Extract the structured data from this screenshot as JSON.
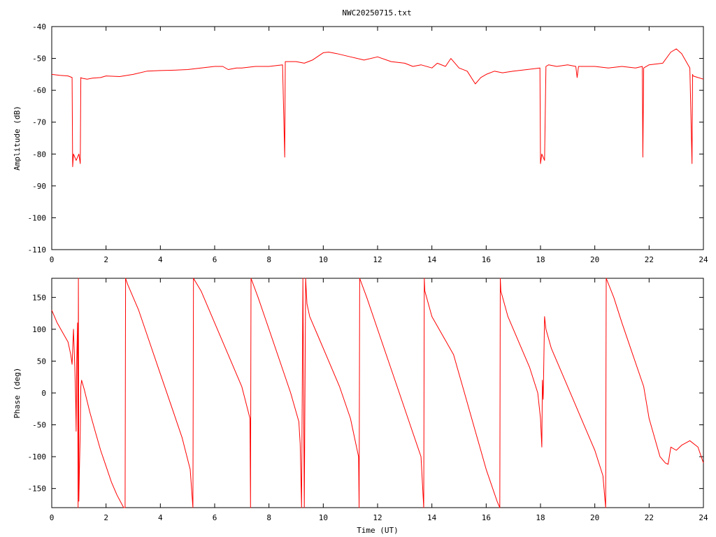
{
  "page": {
    "title": "NWC20250715.txt"
  },
  "colors": {
    "series": "#ff0000",
    "axis": "#000000",
    "background": "#ffffff"
  },
  "chart_data": [
    {
      "id": "amplitude",
      "type": "line",
      "title": "NWC20250715.txt",
      "xlabel": "",
      "ylabel": "Amplitude (dB)",
      "xlim": [
        0,
        24
      ],
      "ylim": [
        -110,
        -40
      ],
      "xticks": [
        "0",
        "2",
        "4",
        "6",
        "8",
        "10",
        "12",
        "14",
        "16",
        "18",
        "20",
        "22",
        "24"
      ],
      "yticks": [
        "-40",
        "-50",
        "-60",
        "-70",
        "-80",
        "-90",
        "-100",
        "-110"
      ],
      "grid": false,
      "legend": "none",
      "series": [
        {
          "x": [
            0,
            0.3,
            0.6,
            0.75,
            0.77,
            0.8,
            0.9,
            1.0,
            1.05,
            1.07,
            1.1,
            1.3,
            1.5,
            1.8,
            2.0,
            2.5,
            3.0,
            3.5,
            4.0,
            4.5,
            5.0,
            5.5,
            6.0,
            6.3,
            6.5,
            6.8,
            7.0,
            7.5,
            8.0,
            8.5,
            8.58,
            8.6,
            8.62,
            8.8,
            9.0,
            9.3,
            9.6,
            10.0,
            10.2,
            10.5,
            11.0,
            11.5,
            12.0,
            12.5,
            13.0,
            13.3,
            13.6,
            14.0,
            14.2,
            14.5,
            14.7,
            15.0,
            15.3,
            15.6,
            15.8,
            16.0,
            16.3,
            16.6,
            17.0,
            17.5,
            17.98,
            18.0,
            18.05,
            18.15,
            18.2,
            18.3,
            18.6,
            19.0,
            19.3,
            19.35,
            19.4,
            19.8,
            20.0,
            20.5,
            21.0,
            21.5,
            21.75,
            21.77,
            21.8,
            22.0,
            22.5,
            22.8,
            23.0,
            23.2,
            23.5,
            23.58,
            23.6,
            23.62,
            23.8,
            24.0
          ],
          "y": [
            -55,
            -55.3,
            -55.5,
            -56,
            -84,
            -80,
            -82,
            -80,
            -83,
            -56,
            -56.2,
            -56.5,
            -56.2,
            -56,
            -55.5,
            -55.7,
            -55,
            -54,
            -53.8,
            -53.7,
            -53.5,
            -53,
            -52.5,
            -52.5,
            -53.5,
            -53,
            -53,
            -52.5,
            -52.5,
            -52,
            -81,
            -51,
            -51,
            -51,
            -51,
            -51.5,
            -50.5,
            -48.2,
            -48,
            -48.5,
            -49.5,
            -50.5,
            -49.5,
            -51,
            -51.5,
            -52.5,
            -52,
            -53,
            -51.5,
            -52.5,
            -50,
            -53,
            -54,
            -58,
            -56,
            -55,
            -54,
            -54.5,
            -54,
            -53.5,
            -53,
            -83,
            -80,
            -82,
            -52.5,
            -52,
            -52.5,
            -52,
            -52.5,
            -56,
            -52.5,
            -52.5,
            -52.5,
            -53,
            -52.5,
            -53,
            -52.5,
            -81,
            -53,
            -52,
            -51.5,
            -48,
            -47,
            -48.5,
            -53,
            -83,
            -55,
            -55.5,
            -56,
            -56.5
          ]
        }
      ]
    },
    {
      "id": "phase",
      "type": "line",
      "title": "",
      "xlabel": "Time (UT)",
      "ylabel": "Phase (deg)",
      "xlim": [
        0,
        24
      ],
      "ylim": [
        -180,
        180
      ],
      "xticks": [
        "0",
        "2",
        "4",
        "6",
        "8",
        "10",
        "12",
        "14",
        "16",
        "18",
        "20",
        "22",
        "24"
      ],
      "yticks": [
        "150",
        "100",
        "50",
        "0",
        "-50",
        "-100",
        "-150"
      ],
      "ytick_values": [
        150,
        100,
        50,
        0,
        -50,
        -100,
        -150
      ],
      "grid": false,
      "legend": "none",
      "series": [
        {
          "x": [
            0,
            0.2,
            0.4,
            0.6,
            0.7,
            0.75,
            0.8,
            0.85,
            0.88,
            0.9,
            0.92,
            0.95,
            0.97,
            0.98,
            1.0,
            1.02,
            1.05,
            1.07,
            1.1,
            1.2,
            1.4,
            1.6,
            1.8,
            2.0,
            2.2,
            2.4,
            2.65,
            2.7,
            2.72,
            2.8,
            3.2,
            3.6,
            4.0,
            4.4,
            4.8,
            5.1,
            5.2,
            5.22,
            5.5,
            6.0,
            6.5,
            7.0,
            7.3,
            7.32,
            7.34,
            7.6,
            8.0,
            8.4,
            8.8,
            9.1,
            9.15,
            9.2,
            9.25,
            9.3,
            9.35,
            9.4,
            9.5,
            9.8,
            10.2,
            10.6,
            11.0,
            11.3,
            11.32,
            11.34,
            11.6,
            12.0,
            12.4,
            12.8,
            13.2,
            13.6,
            13.7,
            13.72,
            13.74,
            14.0,
            14.4,
            14.8,
            15.0,
            15.2,
            15.4,
            15.6,
            15.8,
            16.0,
            16.4,
            16.5,
            16.52,
            16.54,
            16.8,
            17.2,
            17.6,
            17.9,
            18.0,
            18.05,
            18.07,
            18.1,
            18.15,
            18.2,
            18.4,
            18.8,
            19.2,
            19.6,
            20.0,
            20.3,
            20.38,
            20.4,
            20.42,
            20.7,
            21.0,
            21.4,
            21.8,
            22.0,
            22.2,
            22.4,
            22.6,
            22.7,
            22.8,
            23.0,
            23.2,
            23.5,
            23.8,
            24.0
          ],
          "y": [
            130,
            110,
            95,
            80,
            60,
            45,
            100,
            40,
            -10,
            -60,
            50,
            110,
            -180,
            180,
            -170,
            -120,
            -60,
            10,
            20,
            5,
            -30,
            -60,
            -90,
            -115,
            -140,
            -160,
            -180,
            -180,
            180,
            170,
            130,
            80,
            30,
            -20,
            -70,
            -120,
            -180,
            180,
            160,
            110,
            60,
            10,
            -40,
            -180,
            180,
            150,
            100,
            50,
            0,
            -45,
            -80,
            -180,
            180,
            -180,
            180,
            140,
            120,
            90,
            50,
            10,
            -40,
            -100,
            -180,
            180,
            150,
            100,
            50,
            0,
            -50,
            -100,
            -180,
            180,
            160,
            120,
            90,
            60,
            30,
            0,
            -30,
            -60,
            -90,
            -120,
            -170,
            -180,
            180,
            160,
            120,
            80,
            40,
            0,
            -40,
            -85,
            20,
            -10,
            120,
            100,
            70,
            30,
            -10,
            -50,
            -90,
            -130,
            -170,
            -180,
            180,
            150,
            110,
            60,
            10,
            -40,
            -70,
            -100,
            -110,
            -112,
            -85,
            -90,
            -82,
            -75,
            -85,
            -110
          ]
        }
      ]
    }
  ]
}
